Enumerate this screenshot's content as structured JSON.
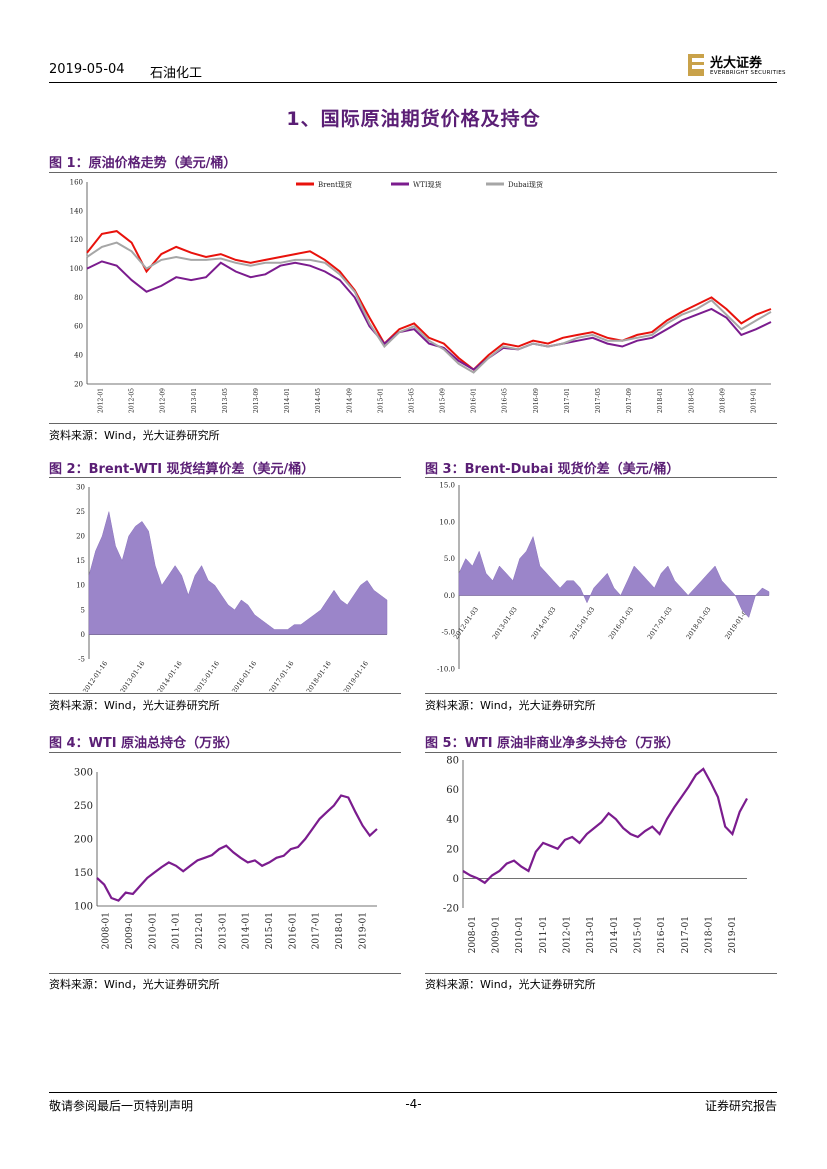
{
  "header": {
    "date": "2019-05-04",
    "sector": "石油化工",
    "brand_cn": "光大证券",
    "brand_en": "EVERBRIGHT SECURITIES"
  },
  "section_title": "1、国际原油期货价格及持仓",
  "figures": {
    "fig1": {
      "title": "图 1：原油价格走势（美元/桶）",
      "source": "资料来源：Wind，光大证券研究所"
    },
    "fig2": {
      "title": "图 2：Brent-WTI 现货结算价差（美元/桶）",
      "source": "资料来源：Wind，光大证券研究所"
    },
    "fig3": {
      "title": "图 3：Brent-Dubai 现货价差（美元/桶）",
      "source": "资料来源：Wind，光大证券研究所"
    },
    "fig4": {
      "title": "图 4：WTI 原油总持仓（万张）",
      "source": "资料来源：Wind，光大证券研究所"
    },
    "fig5": {
      "title": "图 5：WTI 原油非商业净多头持仓（万张）",
      "source": "资料来源：Wind，光大证券研究所"
    }
  },
  "footer": {
    "disclaimer": "敬请参阅最后一页特别声明",
    "page": "-4-",
    "report_type": "证券研究报告"
  },
  "colors": {
    "purple": "#7b1c8e",
    "red": "#e8120c",
    "gray": "#a6a6a6",
    "lavender": "#9b85c9",
    "title": "#5a1e75"
  },
  "chart_data": [
    {
      "id": "fig1",
      "type": "line",
      "title": "原油价格走势（美元/桶）",
      "ylim": [
        20,
        160
      ],
      "yticks": [
        "160",
        "140",
        "120",
        "100",
        "80",
        "60",
        "40",
        "20"
      ],
      "xticks": [
        "2012-01",
        "2012-05",
        "2012-09",
        "2013-01",
        "2013-05",
        "2013-09",
        "2014-01",
        "2014-05",
        "2014-09",
        "2015-01",
        "2015-05",
        "2015-09",
        "2016-01",
        "2016-05",
        "2016-09",
        "2017-01",
        "2017-05",
        "2017-09",
        "2018-01",
        "2018-05",
        "2018-09",
        "2019-01"
      ],
      "series": [
        {
          "name": "Brent现货",
          "color": "#e8120c",
          "values": [
            111,
            124,
            126,
            118,
            98,
            110,
            115,
            111,
            108,
            110,
            106,
            104,
            106,
            108,
            110,
            112,
            106,
            98,
            85,
            66,
            48,
            58,
            62,
            52,
            48,
            38,
            30,
            40,
            48,
            46,
            50,
            48,
            52,
            54,
            56,
            52,
            50,
            54,
            56,
            64,
            70,
            75,
            80,
            72,
            62,
            68,
            72
          ]
        },
        {
          "name": "WTI现货",
          "color": "#7b1c8e",
          "values": [
            100,
            105,
            102,
            92,
            84,
            88,
            94,
            92,
            94,
            104,
            98,
            94,
            96,
            102,
            104,
            102,
            98,
            92,
            80,
            60,
            48,
            56,
            58,
            48,
            45,
            36,
            30,
            38,
            45,
            44,
            48,
            46,
            48,
            50,
            52,
            48,
            46,
            50,
            52,
            58,
            64,
            68,
            72,
            66,
            54,
            58,
            63
          ]
        },
        {
          "name": "Dubai现货",
          "color": "#a6a6a6",
          "values": [
            108,
            115,
            118,
            112,
            100,
            106,
            108,
            106,
            106,
            107,
            104,
            102,
            104,
            104,
            106,
            106,
            104,
            96,
            84,
            62,
            46,
            56,
            60,
            50,
            44,
            34,
            28,
            38,
            46,
            44,
            48,
            46,
            48,
            52,
            54,
            50,
            50,
            52,
            54,
            62,
            68,
            72,
            78,
            68,
            58,
            64,
            70
          ]
        }
      ]
    },
    {
      "id": "fig2",
      "type": "area",
      "title": "Brent-WTI 现货结算价差（美元/桶）",
      "ylim": [
        -5,
        30
      ],
      "yticks": [
        "30",
        "25",
        "20",
        "15",
        "10",
        "5",
        "0",
        "-5"
      ],
      "xticks": [
        "2012-01-16",
        "2013-01-16",
        "2014-01-16",
        "2015-01-16",
        "2016-01-16",
        "2017-01-16",
        "2018-01-16",
        "2019-01-16"
      ],
      "values": [
        12,
        17,
        20,
        25,
        18,
        15,
        20,
        22,
        23,
        21,
        14,
        10,
        12,
        14,
        12,
        8,
        12,
        14,
        11,
        10,
        8,
        6,
        5,
        7,
        6,
        4,
        3,
        2,
        1,
        1,
        1,
        2,
        2,
        3,
        4,
        5,
        7,
        9,
        7,
        6,
        8,
        10,
        11,
        9,
        8,
        7
      ]
    },
    {
      "id": "fig3",
      "type": "area",
      "title": "Brent-Dubai 现货价差（美元/桶）",
      "ylim": [
        -10,
        15
      ],
      "yticks": [
        "15.0",
        "10.0",
        "5.0",
        "0.0",
        "-5.0",
        "-10.0"
      ],
      "xticks": [
        "2012-01-03",
        "2013-01-03",
        "2014-01-03",
        "2015-01-03",
        "2016-01-03",
        "2017-01-03",
        "2018-01-03",
        "2019-01-03"
      ],
      "values": [
        3,
        5,
        4,
        6,
        3,
        2,
        4,
        3,
        2,
        5,
        6,
        8,
        4,
        3,
        2,
        1,
        2,
        2,
        1,
        -1,
        1,
        2,
        3,
        1,
        0,
        2,
        4,
        3,
        2,
        1,
        3,
        4,
        2,
        1,
        0,
        1,
        2,
        3,
        4,
        2,
        1,
        0,
        -2,
        -3,
        0,
        1,
        0.5
      ]
    },
    {
      "id": "fig4",
      "type": "line",
      "title": "WTI 原油总持仓（万张）",
      "ylim": [
        100,
        300
      ],
      "yticks": [
        "300",
        "250",
        "200",
        "150",
        "100"
      ],
      "xticks": [
        "2008-01",
        "2009-01",
        "2010-01",
        "2011-01",
        "2012-01",
        "2013-01",
        "2014-01",
        "2015-01",
        "2016-01",
        "2017-01",
        "2018-01",
        "2019-01"
      ],
      "values": [
        142,
        132,
        112,
        108,
        120,
        118,
        130,
        142,
        150,
        158,
        165,
        160,
        152,
        160,
        168,
        172,
        176,
        185,
        190,
        180,
        172,
        165,
        168,
        160,
        165,
        172,
        175,
        185,
        188,
        200,
        215,
        230,
        240,
        250,
        265,
        262,
        240,
        220,
        205,
        215
      ]
    },
    {
      "id": "fig5",
      "type": "line",
      "title": "WTI 原油非商业净多头持仓（万张）",
      "ylim": [
        -20,
        80
      ],
      "yticks": [
        "80",
        "60",
        "40",
        "20",
        "0",
        "-20"
      ],
      "xticks": [
        "2008-01",
        "2009-01",
        "2010-01",
        "2011-01",
        "2012-01",
        "2013-01",
        "2014-01",
        "2015-01",
        "2016-01",
        "2017-01",
        "2018-01",
        "2019-01"
      ],
      "values": [
        5,
        2,
        0,
        -3,
        2,
        5,
        10,
        12,
        8,
        5,
        18,
        24,
        22,
        20,
        26,
        28,
        24,
        30,
        34,
        38,
        44,
        40,
        34,
        30,
        28,
        32,
        35,
        30,
        40,
        48,
        55,
        62,
        70,
        74,
        65,
        55,
        35,
        30,
        45,
        54
      ]
    }
  ]
}
